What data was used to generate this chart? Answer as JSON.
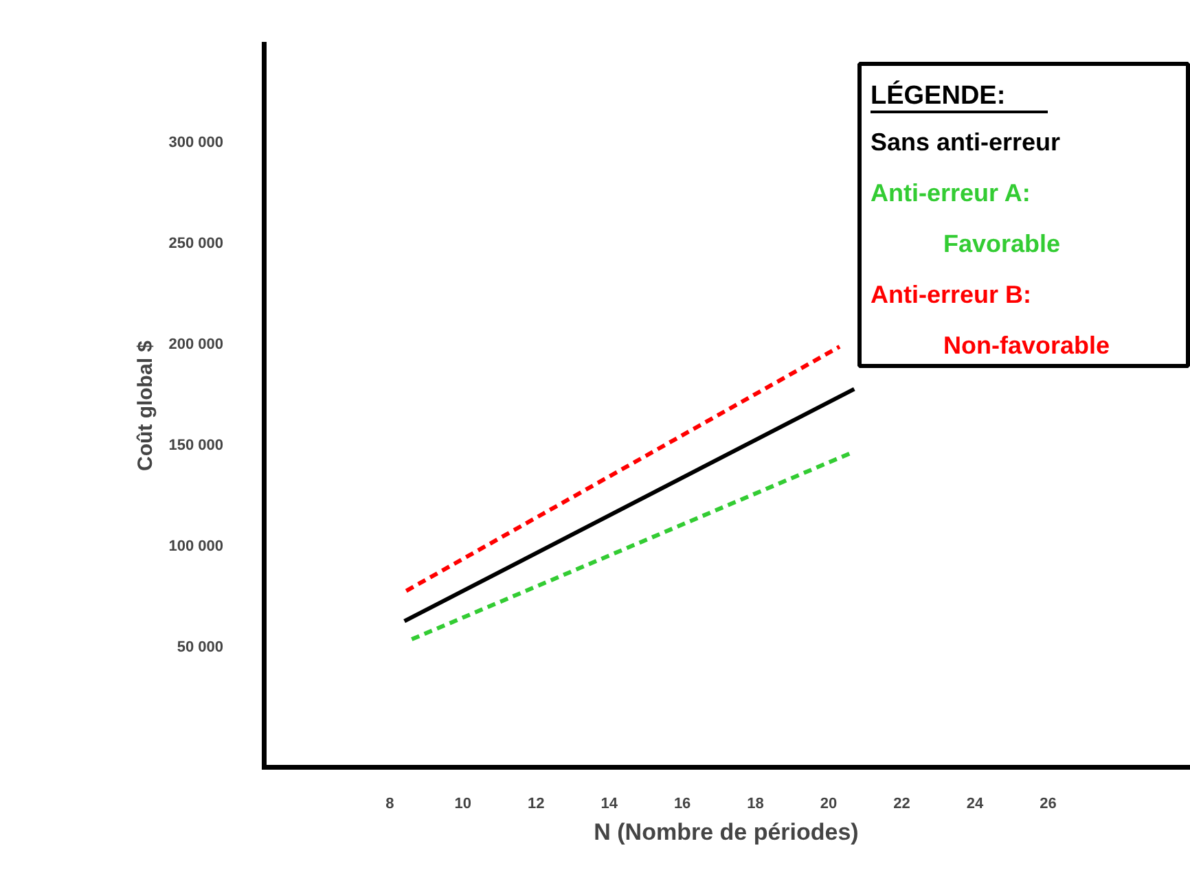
{
  "chart_data": {
    "type": "line",
    "xlabel": "N (Nombre de périodes)",
    "ylabel": "Coût global $",
    "legend_title": "LÉGENDE:",
    "legend": "top right",
    "grid": false,
    "xlim": [
      4.5,
      29.9
    ],
    "ylim": [
      -10600,
      350000
    ],
    "xticks": [
      8,
      10,
      12,
      14,
      16,
      18,
      20,
      22,
      24,
      26
    ],
    "yticks": [
      {
        "value": 50000,
        "label": "50 000"
      },
      {
        "value": 100000,
        "label": "100 000"
      },
      {
        "value": 150000,
        "label": "150 000"
      },
      {
        "value": 200000,
        "label": "200 000"
      },
      {
        "value": 250000,
        "label": "250 000"
      },
      {
        "value": 300000,
        "label": "300 000"
      }
    ],
    "series": [
      {
        "name": "Sans anti-erreur",
        "color": "#000000",
        "line_style": "solid",
        "x": [
          8.4,
          20.7
        ],
        "values": [
          63000,
          178000
        ]
      },
      {
        "name": "Anti-erreur A: Favorable",
        "color": "#33cc33",
        "line_style": "dashed",
        "x": [
          8.6,
          20.7
        ],
        "values": [
          54000,
          147000
        ]
      },
      {
        "name": "Anti-erreur B: Non-favorable",
        "color": "#ff0000",
        "line_style": "dashed",
        "x": [
          8.45,
          20.3
        ],
        "values": [
          78000,
          199000
        ]
      }
    ]
  }
}
